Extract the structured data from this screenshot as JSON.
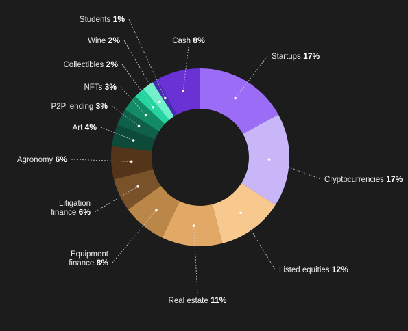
{
  "chart_data": {
    "type": "donut",
    "title": "",
    "slices": [
      {
        "label": "Startups",
        "value": 17,
        "display": "17%",
        "color": "#9b6cf5"
      },
      {
        "label": "Cryptocurrencies",
        "value": 17,
        "display": "17%",
        "color": "#c9b6f9"
      },
      {
        "label": "Listed equities",
        "value": 12,
        "display": "12%",
        "color": "#f8c98f"
      },
      {
        "label": "Real estate",
        "value": 11,
        "display": "11%",
        "color": "#e2a866"
      },
      {
        "label": "Equipment finance",
        "value": 8,
        "display": "8%",
        "color": "#bb8749"
      },
      {
        "label": "Litigation finance",
        "value": 6,
        "display": "6%",
        "color": "#7a522a"
      },
      {
        "label": "Agronomy",
        "value": 6,
        "display": "6%",
        "color": "#553519"
      },
      {
        "label": "Art",
        "value": 4,
        "display": "4%",
        "color": "#0d4a38"
      },
      {
        "label": "P2P lending",
        "value": 3,
        "display": "3%",
        "color": "#0f6049"
      },
      {
        "label": "NFTs",
        "value": 3,
        "display": "3%",
        "color": "#138c66"
      },
      {
        "label": "Collectibles",
        "value": 2,
        "display": "2%",
        "color": "#25d4a0"
      },
      {
        "label": "Wine",
        "value": 2,
        "display": "2%",
        "color": "#6ef1ca"
      },
      {
        "label": "Students",
        "value": 1,
        "display": "1%",
        "color": "#4a2bb3"
      },
      {
        "label": "Cash",
        "value": 8,
        "display": "8%",
        "color": "#6a32d5"
      }
    ],
    "legend": "none"
  }
}
